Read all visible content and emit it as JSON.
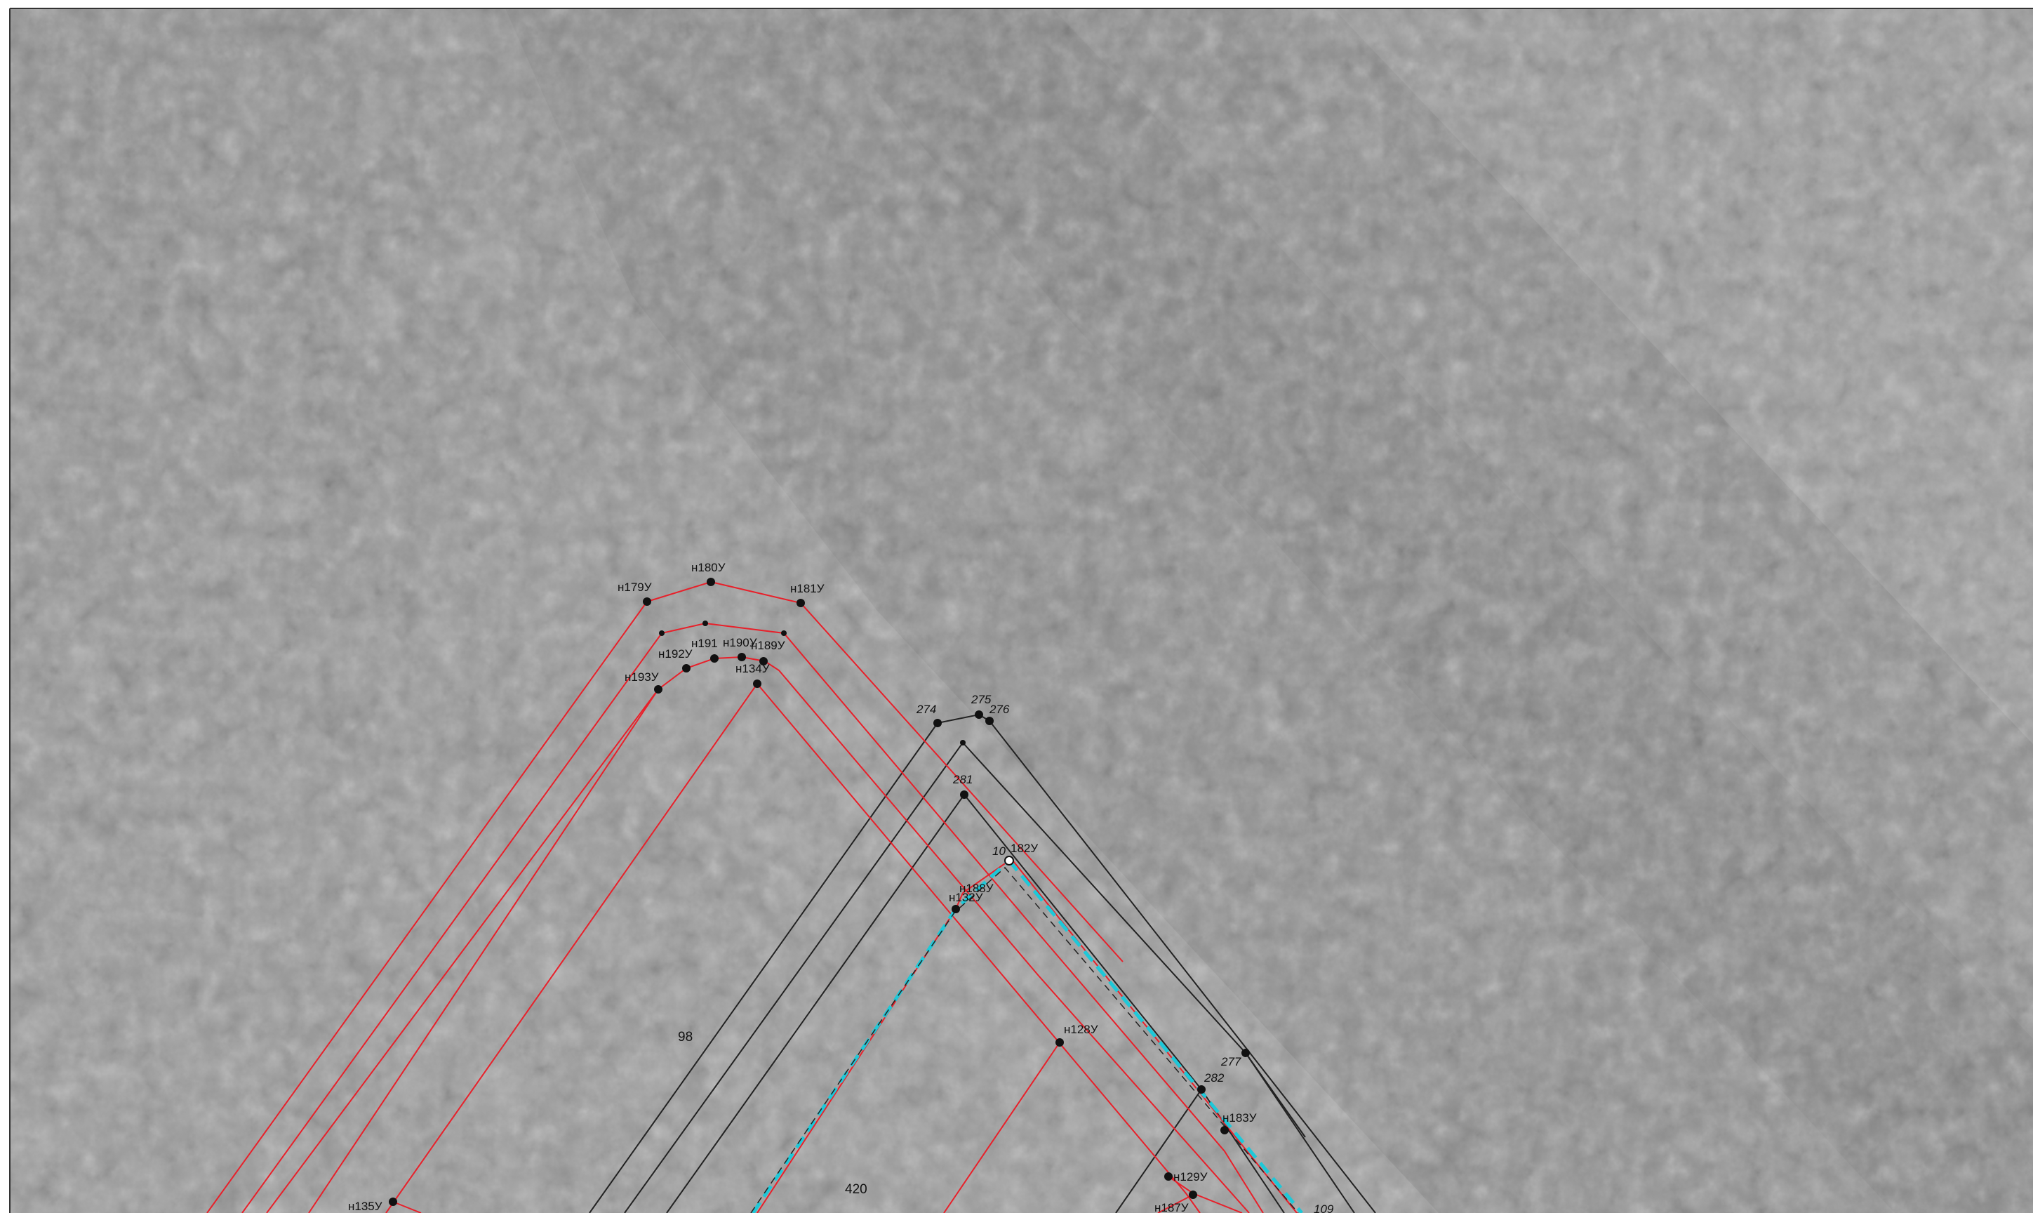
{
  "map": {
    "colors": {
      "background": "#9a9a9a",
      "red_boundary": "#e8202a",
      "black_boundary": "#222222",
      "cyan_dashed": "#1ec8d8",
      "frame": "#333333"
    },
    "red_points": {
      "n179": "н179У",
      "n180": "н180У",
      "n181": "н181У",
      "n191": "н191",
      "n190": "н190У",
      "n189": "н189У",
      "n192": "н192У",
      "n193": "н193У",
      "n134": "н134У",
      "n182": "182У",
      "n188": "н188У",
      "n132": "н132У",
      "n128": "н128У",
      "n183": "н183У",
      "n129": "н129У",
      "n187": "н187У",
      "n135": "н135У"
    },
    "black_points": {
      "p274": "274",
      "p275": "275",
      "p276": "276",
      "p281": "281",
      "p277": "277",
      "p282": "282",
      "p10": "10",
      "p109": "109"
    },
    "parcel_numbers": {
      "parcel_98": "98",
      "parcel_420": "420"
    }
  }
}
